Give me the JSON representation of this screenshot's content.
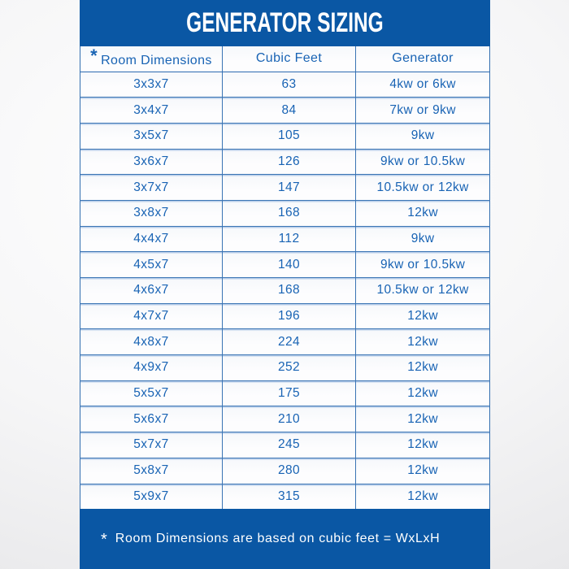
{
  "title": "GENERATOR SIZING",
  "chart_data": {
    "type": "table",
    "title": "GENERATOR SIZING",
    "columns": [
      "Room Dimensions",
      "Cubic Feet",
      "Generator"
    ],
    "rows": [
      [
        "3x3x7",
        "63",
        "4kw or 6kw"
      ],
      [
        "3x4x7",
        "84",
        "7kw or 9kw"
      ],
      [
        "3x5x7",
        "105",
        "9kw"
      ],
      [
        "3x6x7",
        "126",
        "9kw or 10.5kw"
      ],
      [
        "3x7x7",
        "147",
        "10.5kw or 12kw"
      ],
      [
        "3x8x7",
        "168",
        "12kw"
      ],
      [
        "4x4x7",
        "112",
        "9kw"
      ],
      [
        "4x5x7",
        "140",
        "9kw or 10.5kw"
      ],
      [
        "4x6x7",
        "168",
        "10.5kw or 12kw"
      ],
      [
        "4x7x7",
        "196",
        "12kw"
      ],
      [
        "4x8x7",
        "224",
        "12kw"
      ],
      [
        "4x9x7",
        "252",
        "12kw"
      ],
      [
        "5x5x7",
        "175",
        "12kw"
      ],
      [
        "5x6x7",
        "210",
        "12kw"
      ],
      [
        "5x7x7",
        "245",
        "12kw"
      ],
      [
        "5x8x7",
        "280",
        "12kw"
      ],
      [
        "5x9x7",
        "315",
        "12kw"
      ]
    ],
    "footnote": "* Room Dimensions are based on cubic feet = WxLxH"
  },
  "header": {
    "asterisk": "*"
  },
  "footer": {
    "asterisk": "*",
    "note": "Room Dimensions are based on cubic feet = WxLxH"
  },
  "colors": {
    "panel_blue": "#0a57a4",
    "table_text_blue": "#1863b4",
    "column_border_blue": "#3a74b4",
    "row_divider_light": "#b7cde9",
    "title_text": "#ffffff",
    "footer_text": "#ffffff"
  }
}
